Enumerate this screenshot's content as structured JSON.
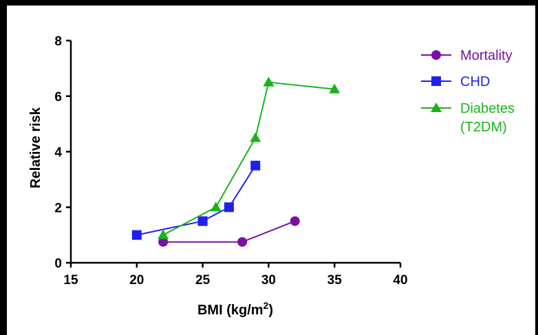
{
  "chart_data": {
    "type": "line",
    "title": "",
    "xlabel": "BMI (kg/m",
    "xlabel_sup": "2",
    "xlabel_close": ")",
    "ylabel": "Relative risk",
    "xlim": [
      15,
      40
    ],
    "ylim": [
      0,
      8
    ],
    "x_ticks": [
      15,
      20,
      25,
      30,
      35,
      40
    ],
    "y_ticks": [
      0,
      2,
      4,
      6,
      8
    ],
    "grid": false,
    "legend_position": "right",
    "series": [
      {
        "name": "Mortality",
        "color": "#7b0fa3",
        "marker": "circle",
        "points": [
          [
            22,
            0.75
          ],
          [
            28,
            0.75
          ],
          [
            32,
            1.5
          ]
        ]
      },
      {
        "name": "CHD",
        "color": "#1f1ff0",
        "marker": "square",
        "points": [
          [
            20,
            1.0
          ],
          [
            25,
            1.5
          ],
          [
            27,
            2.0
          ],
          [
            29,
            3.5
          ]
        ]
      },
      {
        "name": "Diabetes",
        "name_line2": "(T2DM)",
        "color": "#19b319",
        "marker": "triangle",
        "points": [
          [
            22,
            1.0
          ],
          [
            26,
            2.0
          ],
          [
            29,
            4.5
          ],
          [
            30,
            6.5
          ],
          [
            35,
            6.25
          ]
        ]
      }
    ]
  }
}
